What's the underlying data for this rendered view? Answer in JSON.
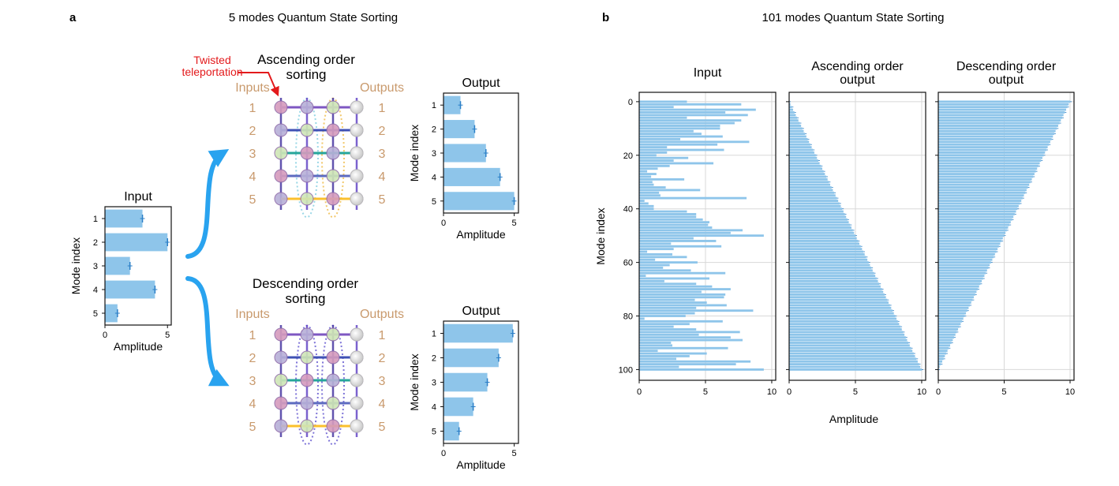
{
  "colors": {
    "bar": "#8ec5ea",
    "bar_edge": "#5fa8dc",
    "err": "#2b7fc7",
    "arrow": "#29a3ef",
    "mode_label": "#c99a6d",
    "red_note": "#e31a1c",
    "grid": "#d8d8d8"
  },
  "panel_a": {
    "letter": "a",
    "title": "5 modes Quantum State Sorting",
    "input_chart_title": "Input",
    "ascending": {
      "title_line1": "Ascending order",
      "title_line2": "sorting",
      "inputs_label": "Inputs",
      "outputs_label": "Outputs",
      "annotation_line1": "Twisted",
      "annotation_line2": "teleportation",
      "output_title": "Output"
    },
    "descending": {
      "title_line1": "Descending order",
      "title_line2": "sorting",
      "inputs_label": "Inputs",
      "outputs_label": "Outputs",
      "output_title": "Output"
    },
    "mode_numbers": [
      "1",
      "2",
      "3",
      "4",
      "5"
    ]
  },
  "panel_b": {
    "letter": "b",
    "title": "101 modes Quantum State Sorting",
    "shared_xlabel": "Amplitude"
  },
  "chart_data": [
    {
      "id": "a_input",
      "type": "bar",
      "orientation": "horizontal",
      "title": "Input",
      "xlabel": "Amplitude",
      "ylabel": "Mode index",
      "categories": [
        "1",
        "2",
        "3",
        "4",
        "5"
      ],
      "values": [
        3.0,
        5.0,
        2.0,
        4.0,
        1.0
      ],
      "xlim": [
        0,
        5.3
      ],
      "xticks": [
        0,
        5
      ]
    },
    {
      "id": "a_asc_output",
      "type": "bar",
      "orientation": "horizontal",
      "title": "Output",
      "xlabel": "Amplitude",
      "ylabel": "Mode index",
      "categories": [
        "1",
        "2",
        "3",
        "4",
        "5"
      ],
      "values": [
        1.2,
        2.2,
        3.0,
        4.0,
        5.0
      ],
      "xlim": [
        0,
        5.3
      ],
      "xticks": [
        0,
        5
      ]
    },
    {
      "id": "a_desc_output",
      "type": "bar",
      "orientation": "horizontal",
      "title": "Output",
      "xlabel": "Amplitude",
      "ylabel": "Mode index",
      "categories": [
        "1",
        "2",
        "3",
        "4",
        "5"
      ],
      "values": [
        4.9,
        3.9,
        3.1,
        2.1,
        1.1
      ],
      "xlim": [
        0,
        5.3
      ],
      "xticks": [
        0,
        5
      ]
    },
    {
      "id": "b_input",
      "type": "bar",
      "orientation": "horizontal",
      "title": "Input",
      "ylabel": "Mode index",
      "n_modes": 101,
      "values": [
        3.6,
        7.7,
        2.6,
        8.8,
        6.5,
        8.2,
        3.6,
        7.7,
        7.2,
        6.1,
        6.1,
        4.1,
        4.7,
        6.3,
        3.1,
        8.3,
        5.9,
        2.1,
        6.4,
        2.1,
        1.3,
        3.7,
        2.6,
        5.6,
        2.3,
        1.4,
        0.6,
        1.3,
        0.9,
        3.4,
        1.0,
        1.1,
        2.0,
        4.6,
        1.5,
        1.6,
        8.1,
        0.4,
        0.7,
        1.1,
        1.1,
        3.6,
        4.3,
        4.3,
        4.8,
        5.3,
        5.2,
        5.5,
        7.8,
        6.9,
        9.4,
        4.1,
        5.8,
        2.4,
        6.2,
        2.6,
        0.6,
        2.5,
        3.6,
        1.2,
        4.4,
        2.3,
        1.8,
        3.9,
        6.5,
        0.5,
        5.3,
        1.9,
        4.3,
        5.5,
        6.9,
        4.7,
        6.5,
        6.4,
        4.2,
        5.1,
        6.6,
        4.3,
        8.6,
        4.2,
        3.5,
        0.4,
        6.3,
        3.8,
        2.6,
        4.3,
        7.6,
        4.5,
        6.9,
        7.8,
        2.4,
        2.5,
        6.7,
        1.4,
        5.1,
        3.8,
        2.8,
        8.4,
        7.3,
        3.0,
        9.4
      ],
      "xlim": [
        0,
        10.3
      ],
      "xticks": [
        0,
        5,
        10
      ],
      "yticks": [
        0,
        20,
        40,
        60,
        80,
        100
      ]
    },
    {
      "id": "b_ascending_output",
      "type": "bar",
      "orientation": "horizontal",
      "title": "Ascending order output",
      "xlabel": "Amplitude",
      "n_modes": 101,
      "values_rule": "ascending ramp from 0 to 10 over modes 0-100",
      "value_min": 0,
      "value_max": 10,
      "xlim": [
        0,
        10.3
      ],
      "xticks": [
        0,
        5,
        10
      ],
      "yticks": [
        0,
        20,
        40,
        60,
        80,
        100
      ]
    },
    {
      "id": "b_descending_output",
      "type": "bar",
      "orientation": "horizontal",
      "title": "Descending order output",
      "n_modes": 101,
      "values_rule": "descending ramp from 10 to 0 over modes 0-100",
      "value_min": 0,
      "value_max": 10,
      "xlim": [
        0,
        10.3
      ],
      "xticks": [
        0,
        5,
        10
      ],
      "yticks": [
        0,
        20,
        40,
        60,
        80,
        100
      ]
    }
  ]
}
